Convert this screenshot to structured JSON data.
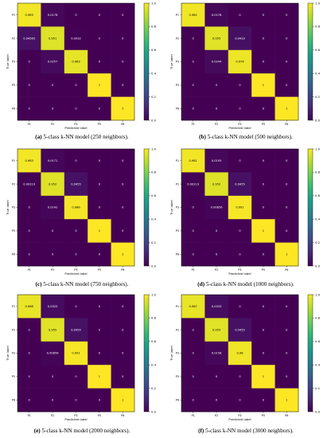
{
  "colors": {
    "viridis": [
      "#440154",
      "#482878",
      "#3e4989",
      "#31688e",
      "#26828e",
      "#1f9e89",
      "#35b779",
      "#6ece58",
      "#b5de2b",
      "#fde725"
    ],
    "text_light": "#ffffff",
    "text_dark": "#000000"
  },
  "chart_data": [
    {
      "type": "heatmap",
      "caption_label": "(a)",
      "caption_text": "5-class k-NN model (250 neighbors).",
      "xlabel": "Predicted label",
      "ylabel": "True label",
      "tick_labels": [
        "P1",
        "P2",
        "P3",
        "P5",
        "P6"
      ],
      "colorbar_ticks": [
        "0.0",
        "0.2",
        "0.4",
        "0.6",
        "0.8",
        "1.0"
      ],
      "colorbar_range": [
        0,
        1
      ],
      "matrix": [
        [
          0.983,
          0.0178,
          0,
          0,
          0
        ],
        [
          0.04565,
          0.951,
          0.0032,
          0,
          0
        ],
        [
          0,
          0.0257,
          0.963,
          0,
          0
        ],
        [
          0,
          0,
          0,
          1,
          0
        ],
        [
          0,
          0,
          0,
          0,
          1
        ]
      ],
      "cell_text": [
        [
          "0.983",
          "0.0178",
          "0",
          "0",
          "0"
        ],
        [
          "0.04565",
          "0.951",
          "0.0032",
          "0",
          "0"
        ],
        [
          "0",
          "0.0257",
          "0.963",
          "0",
          "0"
        ],
        [
          "0",
          "0",
          "0",
          "1",
          "0"
        ],
        [
          "0",
          "0",
          "0",
          "0",
          "1"
        ]
      ]
    },
    {
      "type": "heatmap",
      "caption_label": "(b)",
      "caption_text": "5-class k-NN model (500 neighbors).",
      "xlabel": "Predicted label",
      "ylabel": "True label",
      "tick_labels": [
        "P1",
        "P2",
        "P3",
        "P5",
        "P6"
      ],
      "colorbar_ticks": [
        "0.0",
        "0.2",
        "0.4",
        "0.6",
        "0.8",
        "1.0"
      ],
      "colorbar_range": [
        0,
        1
      ],
      "matrix": [
        [
          0.982,
          0.0178,
          0,
          0,
          0
        ],
        [
          0,
          0.955,
          0.0433,
          0,
          0
        ],
        [
          0,
          0.0244,
          0.976,
          0,
          0
        ],
        [
          0,
          0,
          0,
          1,
          0
        ],
        [
          0,
          0,
          0,
          0,
          1
        ]
      ],
      "cell_text": [
        [
          "0.982",
          "0.0178",
          "0",
          "0",
          "0"
        ],
        [
          "0",
          "0.955",
          "0.0433",
          "0",
          "0"
        ],
        [
          "0",
          "0.0244",
          "0.976",
          "0",
          "0"
        ],
        [
          "0",
          "0",
          "0",
          "1",
          "0"
        ],
        [
          "0",
          "0",
          "0",
          "0",
          "1"
        ]
      ]
    },
    {
      "type": "heatmap",
      "caption_label": "(c)",
      "caption_text": "5-class k-NN model (750 neighbors).",
      "xlabel": "Predicted label",
      "ylabel": "True label",
      "tick_labels": [
        "P1",
        "P2",
        "P3",
        "P5",
        "P6"
      ],
      "colorbar_ticks": [
        "0.0",
        "0.2",
        "0.4",
        "0.6",
        "0.8",
        "1.0"
      ],
      "colorbar_range": [
        0,
        1
      ],
      "matrix": [
        [
          0.983,
          0.0171,
          0,
          0,
          0
        ],
        [
          0.00219,
          0.952,
          0.0455,
          0,
          0
        ],
        [
          0,
          0.0142,
          0.986,
          0,
          0
        ],
        [
          0,
          0,
          0,
          1,
          0
        ],
        [
          0,
          0,
          0,
          0,
          1
        ]
      ],
      "cell_text": [
        [
          "0.983",
          "0.0171",
          "0",
          "0",
          "0"
        ],
        [
          "0.00219",
          "0.952",
          "0.0455",
          "0",
          "0"
        ],
        [
          "0",
          "0.0142",
          "0.986",
          "0",
          "0"
        ],
        [
          "0",
          "0",
          "0",
          "1",
          "0"
        ],
        [
          "0",
          "0",
          "0",
          "0",
          "1"
        ]
      ]
    },
    {
      "type": "heatmap",
      "caption_label": "(d)",
      "caption_text": "5-class k-NN model (1000 neighbors).",
      "xlabel": "Predicted label",
      "ylabel": "True label",
      "tick_labels": [
        "P1",
        "P2",
        "P3",
        "P5",
        "P6"
      ],
      "colorbar_ticks": [
        "0.0",
        "0.2",
        "0.4",
        "0.6",
        "0.8",
        "1.0"
      ],
      "colorbar_range": [
        0,
        1
      ],
      "matrix": [
        [
          0.981,
          0.0195,
          0,
          0,
          0
        ],
        [
          0.00219,
          0.952,
          0.0455,
          0,
          0
        ],
        [
          0,
          0.00856,
          0.991,
          0,
          0
        ],
        [
          0,
          0,
          0,
          1,
          0
        ],
        [
          0,
          0,
          0,
          0,
          1
        ]
      ],
      "cell_text": [
        [
          "0.981",
          "0.0195",
          "0",
          "0",
          "0"
        ],
        [
          "0.00219",
          "0.952",
          "0.0455",
          "0",
          "0"
        ],
        [
          "0",
          "0.00856",
          "0.991",
          "0",
          "0"
        ],
        [
          "0",
          "0",
          "0",
          "1",
          "0"
        ],
        [
          "0",
          "0",
          "0",
          "0",
          "1"
        ]
      ]
    },
    {
      "type": "heatmap",
      "caption_label": "(e)",
      "caption_text": "5-class k-NN model (2000 neighbors).",
      "xlabel": "Predicted label",
      "ylabel": "True label",
      "tick_labels": [
        "P1",
        "P2",
        "P3",
        "P5",
        "P6"
      ],
      "colorbar_ticks": [
        "0.0",
        "0.2",
        "0.4",
        "0.6",
        "0.8",
        "1.0"
      ],
      "colorbar_range": [
        0,
        1
      ],
      "matrix": [
        [
          0.968,
          0.0325,
          0,
          0,
          0
        ],
        [
          0,
          0.955,
          0.0455,
          0,
          0
        ],
        [
          0,
          0.00856,
          0.991,
          0,
          0
        ],
        [
          0,
          0,
          0,
          1,
          0
        ],
        [
          0,
          0,
          0,
          0,
          1
        ]
      ],
      "cell_text": [
        [
          "0.968",
          "0.0325",
          "0",
          "0",
          "0"
        ],
        [
          "0",
          "0.955",
          "0.0455",
          "0",
          "0"
        ],
        [
          "0",
          "0.00856",
          "0.991",
          "0",
          "0"
        ],
        [
          "0",
          "0",
          "0",
          "1",
          "0"
        ],
        [
          "0",
          "0",
          "0",
          "0",
          "1"
        ]
      ]
    },
    {
      "type": "heatmap",
      "caption_label": "(f)",
      "caption_text": "5-class k-NN model (3000 neighbors).",
      "xlabel": "Predicted label",
      "ylabel": "True label",
      "tick_labels": [
        "P1",
        "P2",
        "P3",
        "P5",
        "P6"
      ],
      "colorbar_ticks": [
        "0.0",
        "0.2",
        "0.4",
        "0.6",
        "0.8",
        "1.0"
      ],
      "colorbar_range": [
        0,
        1
      ],
      "matrix": [
        [
          0.967,
          0.0333,
          0,
          0,
          0
        ],
        [
          0,
          0.955,
          0.0455,
          0,
          0
        ],
        [
          0,
          0.0158,
          0.98,
          0,
          0
        ],
        [
          0,
          0,
          0,
          1,
          0
        ],
        [
          0,
          0,
          0,
          0,
          1
        ]
      ],
      "cell_text": [
        [
          "0.967",
          "0.0333",
          "0",
          "0",
          "0"
        ],
        [
          "0",
          "0.955",
          "0.0455",
          "0",
          "0"
        ],
        [
          "0",
          "0.0158",
          "0.98",
          "0",
          "0"
        ],
        [
          "0",
          "0",
          "0",
          "1",
          "0"
        ],
        [
          "0",
          "0",
          "0",
          "0",
          "1"
        ]
      ]
    }
  ]
}
